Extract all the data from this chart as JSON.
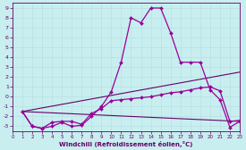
{
  "xlabel": "Windchill (Refroidissement éolien,°C)",
  "bg_color": "#c8eef0",
  "grid_color": "#aadddd",
  "line_color": "#990099",
  "line_color2": "#660066",
  "xlim": [
    0,
    23
  ],
  "ylim": [
    -3.5,
    9.5
  ],
  "xticks": [
    0,
    1,
    2,
    3,
    4,
    5,
    6,
    7,
    8,
    9,
    10,
    11,
    12,
    13,
    14,
    15,
    16,
    17,
    18,
    19,
    20,
    21,
    22,
    23
  ],
  "yticks": [
    -3,
    -2,
    -1,
    0,
    1,
    2,
    3,
    4,
    5,
    6,
    7,
    8,
    9
  ],
  "curve1_x": [
    1,
    2,
    3,
    4,
    5,
    6,
    7,
    8,
    9,
    10,
    11,
    12,
    13,
    14,
    15,
    16,
    17,
    18,
    19,
    20,
    21,
    22,
    23
  ],
  "curve1_y": [
    -1.5,
    -3,
    -3.2,
    -3,
    -2.6,
    -3,
    -2.9,
    -2.0,
    -1.0,
    0.5,
    3.5,
    8.0,
    7.5,
    9.0,
    9.0,
    6.5,
    3.5,
    3.5,
    3.5,
    0.7,
    -0.3,
    -3.1,
    -2.5
  ],
  "curve2_x": [
    1,
    2,
    3,
    4,
    5,
    6,
    7,
    8,
    9,
    10,
    11,
    12,
    13,
    14,
    15,
    16,
    17,
    18,
    19,
    20,
    21,
    22,
    23
  ],
  "curve2_y": [
    -1.5,
    -3,
    -3.2,
    -2.6,
    -2.5,
    -2.5,
    -2.8,
    -1.7,
    -1.2,
    -0.4,
    -0.3,
    -0.2,
    -0.1,
    0.0,
    0.2,
    0.4,
    0.5,
    0.7,
    0.9,
    1.0,
    0.6,
    -2.5,
    -2.4
  ],
  "line1_x": [
    1,
    23
  ],
  "line1_y": [
    -1.5,
    2.5
  ],
  "line2_x": [
    1,
    23
  ],
  "line2_y": [
    -1.5,
    -2.5
  ]
}
